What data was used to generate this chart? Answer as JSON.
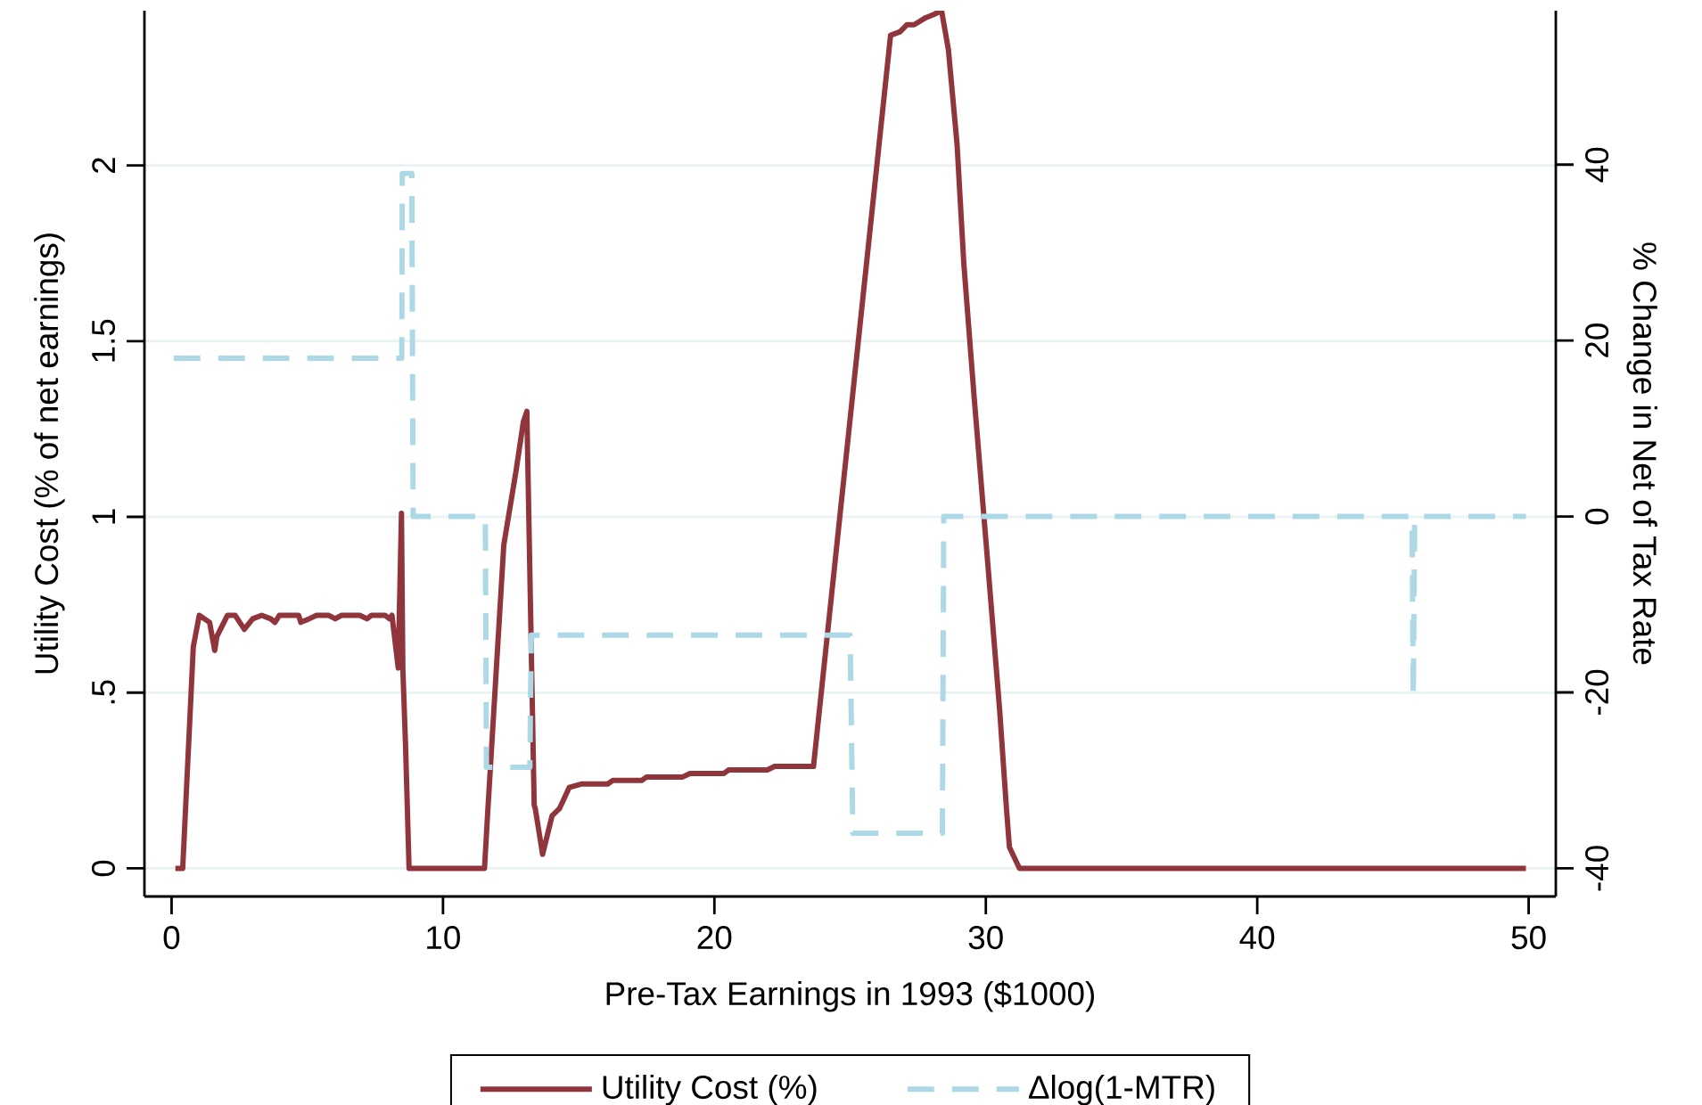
{
  "chart_data": {
    "type": "line",
    "xlabel": "Pre-Tax Earnings in 1993 ($1000)",
    "ylabel": "Utility Cost (% of net earnings)",
    "y2label": "% Change in Net of Tax Rate",
    "xlim": [
      -1,
      51
    ],
    "xticks": [
      0,
      10,
      20,
      30,
      40,
      50
    ],
    "ylim": [
      -0.08,
      2.44
    ],
    "yticks": [
      0,
      {
        "value": 0.5,
        "label": ".5"
      },
      1,
      1.5,
      2
    ],
    "y2lim": [
      -43.2,
      57.5
    ],
    "y2ticks": [
      -40,
      -20,
      0,
      20,
      40
    ],
    "grid": "y",
    "legend": "bottom",
    "marker": "none",
    "series": [
      {
        "name": "Utility Cost (%)",
        "color": "#90353b",
        "line_style": "solid",
        "x": [
          0.14,
          0.41,
          0.8,
          1.02,
          1.4,
          1.59,
          1.67,
          2.06,
          2.34,
          2.68,
          2.99,
          3.32,
          3.65,
          3.81,
          3.97,
          4.3,
          4.68,
          4.76,
          5.07,
          5.34,
          5.78,
          6.03,
          6.27,
          6.93,
          7.2,
          7.37,
          7.86,
          8.03,
          8.12,
          8.35,
          8.47,
          8.52,
          8.62,
          8.75,
          11.53,
          11.64,
          12.24,
          12.69,
          12.96,
          13.09,
          13.36,
          13.4,
          13.67,
          14.02,
          14.29,
          14.65,
          15.09,
          16.07,
          16.25,
          17.32,
          17.5,
          18.83,
          19.1,
          20.35,
          20.52,
          21.95,
          22.22,
          23.65,
          26.49,
          26.84,
          27.09,
          27.36,
          27.78,
          28.1,
          28.37,
          28.62,
          28.94,
          29.19,
          29.57,
          30.09,
          30.51,
          30.76,
          30.87,
          31.24,
          49.9
        ],
        "values": [
          0,
          0,
          0.63,
          0.72,
          0.7,
          0.62,
          0.66,
          0.72,
          0.72,
          0.68,
          0.71,
          0.72,
          0.71,
          0.7,
          0.72,
          0.72,
          0.72,
          0.7,
          0.71,
          0.72,
          0.72,
          0.71,
          0.72,
          0.72,
          0.71,
          0.72,
          0.72,
          0.71,
          0.72,
          0.57,
          1.01,
          0.57,
          0.35,
          0,
          0,
          0.15,
          0.92,
          1.13,
          1.27,
          1.3,
          0.18,
          0.17,
          0.04,
          0.15,
          0.17,
          0.23,
          0.24,
          0.24,
          0.25,
          0.25,
          0.26,
          0.26,
          0.27,
          0.27,
          0.28,
          0.28,
          0.29,
          0.29,
          2.37,
          2.38,
          2.4,
          2.4,
          2.42,
          2.43,
          2.44,
          2.33,
          2.06,
          1.72,
          1.34,
          0.85,
          0.45,
          0.17,
          0.06,
          0,
          0
        ]
      },
      {
        "name": "Δlog(1-MTR)",
        "color": "#add8e6",
        "line_style": "dashed",
        "axis": "y2",
        "x": [
          0.08,
          8.48,
          8.5,
          8.85,
          8.9,
          11.56,
          11.6,
          13.2,
          13.25,
          25.0,
          25.1,
          28.4,
          28.45,
          45.7,
          45.75,
          45.8,
          49.9
        ],
        "values": [
          18,
          18,
          39,
          39,
          0,
          0,
          -28.5,
          -28.5,
          -13.5,
          -13.5,
          -36,
          -36,
          0,
          0,
          -20.5,
          0,
          0
        ]
      }
    ]
  }
}
